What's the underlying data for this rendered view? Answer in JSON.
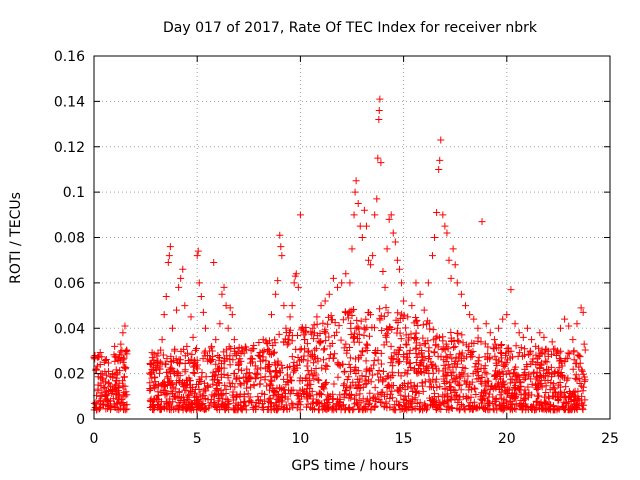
{
  "chart_data": {
    "type": "scatter",
    "title": "Day 017 of 2017, Rate Of TEC Index for receiver nbrk",
    "xlabel": "GPS time / hours",
    "ylabel": "ROTI / TECUs",
    "xlim": [
      0,
      25
    ],
    "ylim": [
      0,
      0.16
    ],
    "xticks": [
      "0",
      "5",
      "10",
      "15",
      "20",
      "25"
    ],
    "yticks": [
      "0",
      "0.02",
      "0.04",
      "0.06",
      "0.08",
      "0.1",
      "0.12",
      "0.14",
      "0.16"
    ],
    "grid": true,
    "marker": "plus",
    "color": "#ff0000",
    "series": [
      {
        "points": [
          [
            0.05,
            0.028
          ],
          [
            0.1,
            0.022
          ],
          [
            0.2,
            0.015
          ],
          [
            0.3,
            0.01
          ],
          [
            0.4,
            0.018
          ],
          [
            0.5,
            0.025
          ],
          [
            0.6,
            0.012
          ],
          [
            0.7,
            0.016
          ],
          [
            0.8,
            0.008
          ],
          [
            0.9,
            0.02
          ],
          [
            1.0,
            0.014
          ],
          [
            1.1,
            0.018
          ],
          [
            1.2,
            0.027
          ],
          [
            1.3,
            0.033
          ],
          [
            1.4,
            0.038
          ],
          [
            1.5,
            0.041
          ],
          [
            1.55,
            0.012
          ],
          [
            1.6,
            0.03
          ],
          [
            0.3,
            0.024
          ],
          [
            0.7,
            0.021
          ],
          [
            1.0,
            0.032
          ],
          [
            2.8,
            0.018
          ],
          [
            2.9,
            0.025
          ],
          [
            3.1,
            0.012
          ],
          [
            3.2,
            0.022
          ],
          [
            3.3,
            0.035
          ],
          [
            3.4,
            0.046
          ],
          [
            3.5,
            0.054
          ],
          [
            3.6,
            0.069
          ],
          [
            3.7,
            0.076
          ],
          [
            3.65,
            0.072
          ],
          [
            3.8,
            0.04
          ],
          [
            3.9,
            0.03
          ],
          [
            4.0,
            0.048
          ],
          [
            4.1,
            0.058
          ],
          [
            4.2,
            0.062
          ],
          [
            4.3,
            0.066
          ],
          [
            4.4,
            0.05
          ],
          [
            4.5,
            0.032
          ],
          [
            4.6,
            0.018
          ],
          [
            4.7,
            0.045
          ],
          [
            4.8,
            0.036
          ],
          [
            4.9,
            0.025
          ],
          [
            5.0,
            0.072
          ],
          [
            5.05,
            0.074
          ],
          [
            5.1,
            0.06
          ],
          [
            5.2,
            0.054
          ],
          [
            5.3,
            0.047
          ],
          [
            5.4,
            0.04
          ],
          [
            5.5,
            0.028
          ],
          [
            5.6,
            0.03
          ],
          [
            5.7,
            0.032
          ],
          [
            5.8,
            0.069
          ],
          [
            5.9,
            0.035
          ],
          [
            6.0,
            0.028
          ],
          [
            6.1,
            0.042
          ],
          [
            6.2,
            0.055
          ],
          [
            6.3,
            0.058
          ],
          [
            6.4,
            0.05
          ],
          [
            6.5,
            0.04
          ],
          [
            6.6,
            0.049
          ],
          [
            6.7,
            0.046
          ],
          [
            6.8,
            0.035
          ],
          [
            6.9,
            0.028
          ],
          [
            7.0,
            0.025
          ],
          [
            7.2,
            0.03
          ],
          [
            7.4,
            0.022
          ],
          [
            7.6,
            0.018
          ],
          [
            7.8,
            0.02
          ],
          [
            8.0,
            0.028
          ],
          [
            8.2,
            0.035
          ],
          [
            8.4,
            0.03
          ],
          [
            8.5,
            0.024
          ],
          [
            8.6,
            0.046
          ],
          [
            8.8,
            0.055
          ],
          [
            8.9,
            0.061
          ],
          [
            9.0,
            0.081
          ],
          [
            9.05,
            0.076
          ],
          [
            9.1,
            0.072
          ],
          [
            9.2,
            0.05
          ],
          [
            9.3,
            0.04
          ],
          [
            9.4,
            0.035
          ],
          [
            9.5,
            0.045
          ],
          [
            9.6,
            0.05
          ],
          [
            9.7,
            0.06
          ],
          [
            9.75,
            0.063
          ],
          [
            9.8,
            0.064
          ],
          [
            9.9,
            0.058
          ],
          [
            10.0,
            0.09
          ],
          [
            10.1,
            0.04
          ],
          [
            10.2,
            0.035
          ],
          [
            10.4,
            0.03
          ],
          [
            10.6,
            0.04
          ],
          [
            10.8,
            0.045
          ],
          [
            11.0,
            0.05
          ],
          [
            11.2,
            0.052
          ],
          [
            11.4,
            0.055
          ],
          [
            11.6,
            0.062
          ],
          [
            11.8,
            0.058
          ],
          [
            12.0,
            0.06
          ],
          [
            12.2,
            0.064
          ],
          [
            12.4,
            0.06
          ],
          [
            12.5,
            0.075
          ],
          [
            12.6,
            0.09
          ],
          [
            12.65,
            0.1
          ],
          [
            12.7,
            0.105
          ],
          [
            12.8,
            0.095
          ],
          [
            12.9,
            0.085
          ],
          [
            13.0,
            0.08
          ],
          [
            13.1,
            0.092
          ],
          [
            13.2,
            0.085
          ],
          [
            13.3,
            0.07
          ],
          [
            13.4,
            0.068
          ],
          [
            13.5,
            0.072
          ],
          [
            13.6,
            0.09
          ],
          [
            13.7,
            0.097
          ],
          [
            13.75,
            0.115
          ],
          [
            13.8,
            0.132
          ],
          [
            13.82,
            0.136
          ],
          [
            13.85,
            0.141
          ],
          [
            13.9,
            0.113
          ],
          [
            14.0,
            0.065
          ],
          [
            14.1,
            0.058
          ],
          [
            14.2,
            0.075
          ],
          [
            14.3,
            0.088
          ],
          [
            14.4,
            0.09
          ],
          [
            14.5,
            0.082
          ],
          [
            14.6,
            0.078
          ],
          [
            14.7,
            0.07
          ],
          [
            14.8,
            0.066
          ],
          [
            14.9,
            0.06
          ],
          [
            15.0,
            0.052
          ],
          [
            15.2,
            0.045
          ],
          [
            15.4,
            0.05
          ],
          [
            15.6,
            0.06
          ],
          [
            15.8,
            0.055
          ],
          [
            16.0,
            0.048
          ],
          [
            16.2,
            0.06
          ],
          [
            16.4,
            0.072
          ],
          [
            16.5,
            0.08
          ],
          [
            16.6,
            0.091
          ],
          [
            16.7,
            0.11
          ],
          [
            16.75,
            0.114
          ],
          [
            16.8,
            0.123
          ],
          [
            16.9,
            0.09
          ],
          [
            17.0,
            0.085
          ],
          [
            17.1,
            0.082
          ],
          [
            17.2,
            0.07
          ],
          [
            17.3,
            0.062
          ],
          [
            17.4,
            0.075
          ],
          [
            17.5,
            0.068
          ],
          [
            17.6,
            0.06
          ],
          [
            17.8,
            0.055
          ],
          [
            18.0,
            0.05
          ],
          [
            18.2,
            0.046
          ],
          [
            18.4,
            0.044
          ],
          [
            18.6,
            0.04
          ],
          [
            18.8,
            0.087
          ],
          [
            19.0,
            0.042
          ],
          [
            19.2,
            0.038
          ],
          [
            19.4,
            0.035
          ],
          [
            19.6,
            0.04
          ],
          [
            19.8,
            0.044
          ],
          [
            20.0,
            0.046
          ],
          [
            20.2,
            0.057
          ],
          [
            20.4,
            0.042
          ],
          [
            20.6,
            0.038
          ],
          [
            20.8,
            0.036
          ],
          [
            21.0,
            0.04
          ],
          [
            21.2,
            0.035
          ],
          [
            21.4,
            0.032
          ],
          [
            21.6,
            0.038
          ],
          [
            21.8,
            0.036
          ],
          [
            22.0,
            0.03
          ],
          [
            22.2,
            0.034
          ],
          [
            22.4,
            0.028
          ],
          [
            22.6,
            0.04
          ],
          [
            22.8,
            0.044
          ],
          [
            23.0,
            0.041
          ],
          [
            23.2,
            0.035
          ],
          [
            23.4,
            0.042
          ],
          [
            23.6,
            0.049
          ],
          [
            23.7,
            0.047
          ],
          [
            23.75,
            0.033
          ]
        ]
      }
    ]
  }
}
